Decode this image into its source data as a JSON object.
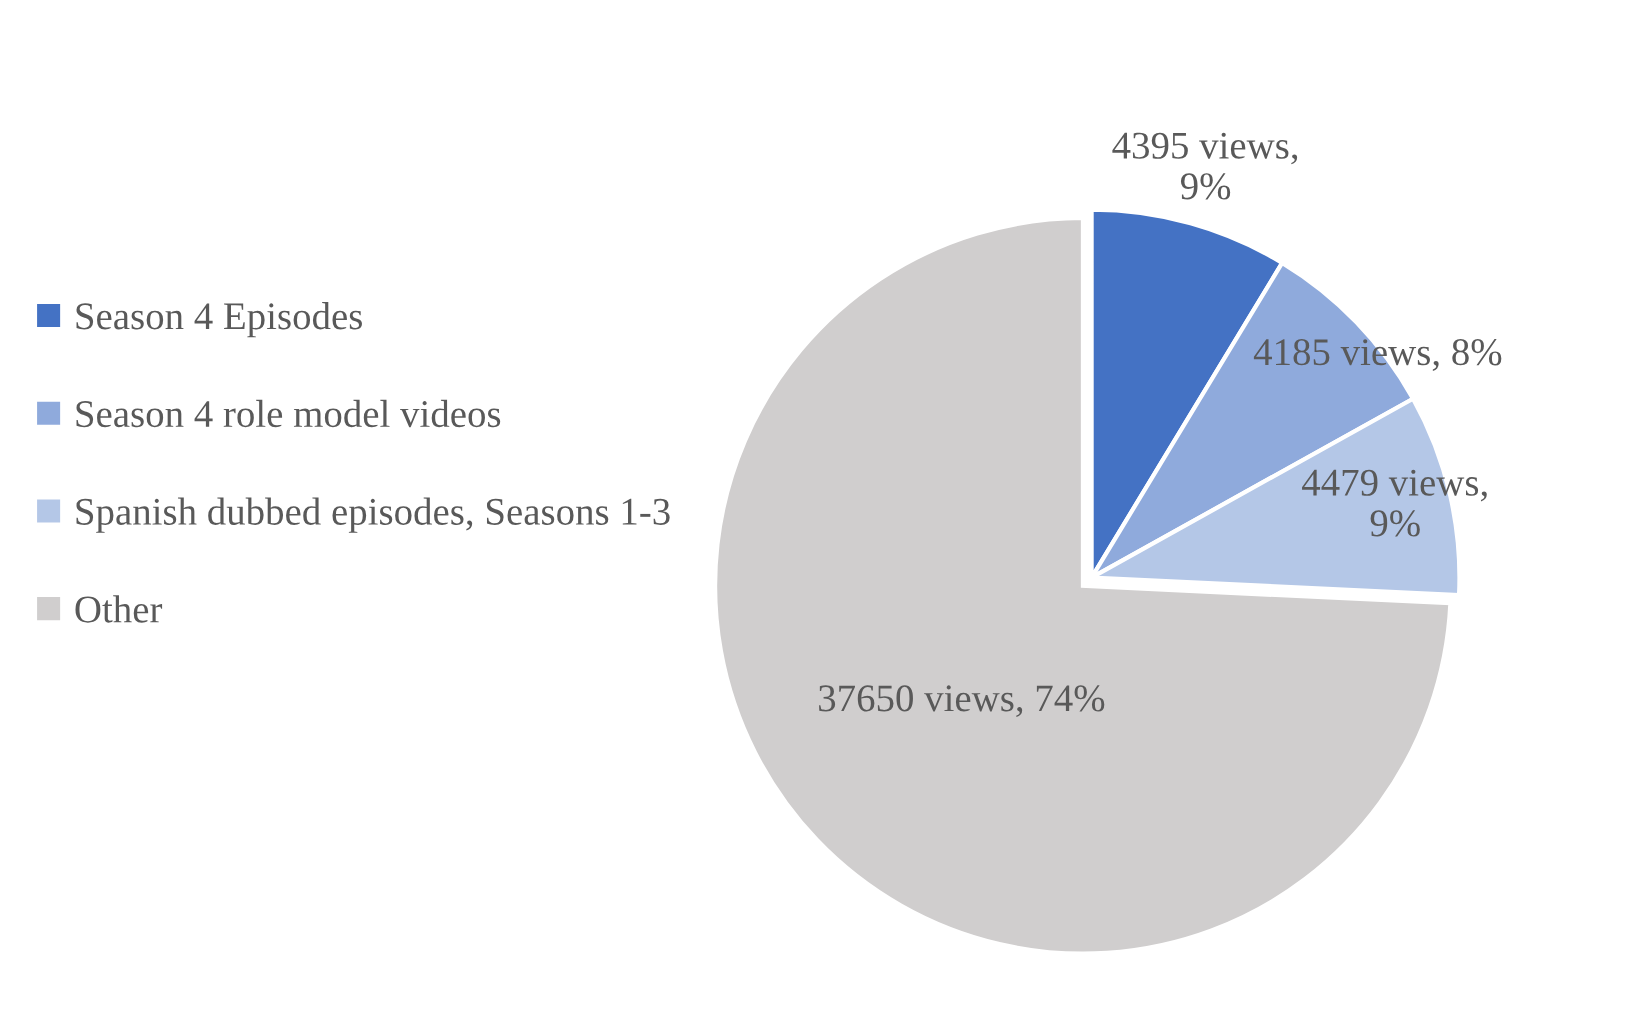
{
  "chart_data": {
    "type": "pie",
    "categories": [
      "Season 4 Episodes",
      "Season 4 role model videos",
      "Spanish dubbed episodes, Seasons 1-3",
      "Other"
    ],
    "values": [
      4395,
      4185,
      4479,
      37650
    ],
    "colors": [
      "#4472c4",
      "#8faadc",
      "#b4c7e7",
      "#d0cece"
    ],
    "value_labels": [
      "4395 views, 9%",
      "4185 views, 8%",
      "4479 views, 9%",
      "37650 views, 74%"
    ],
    "legend": "left"
  }
}
